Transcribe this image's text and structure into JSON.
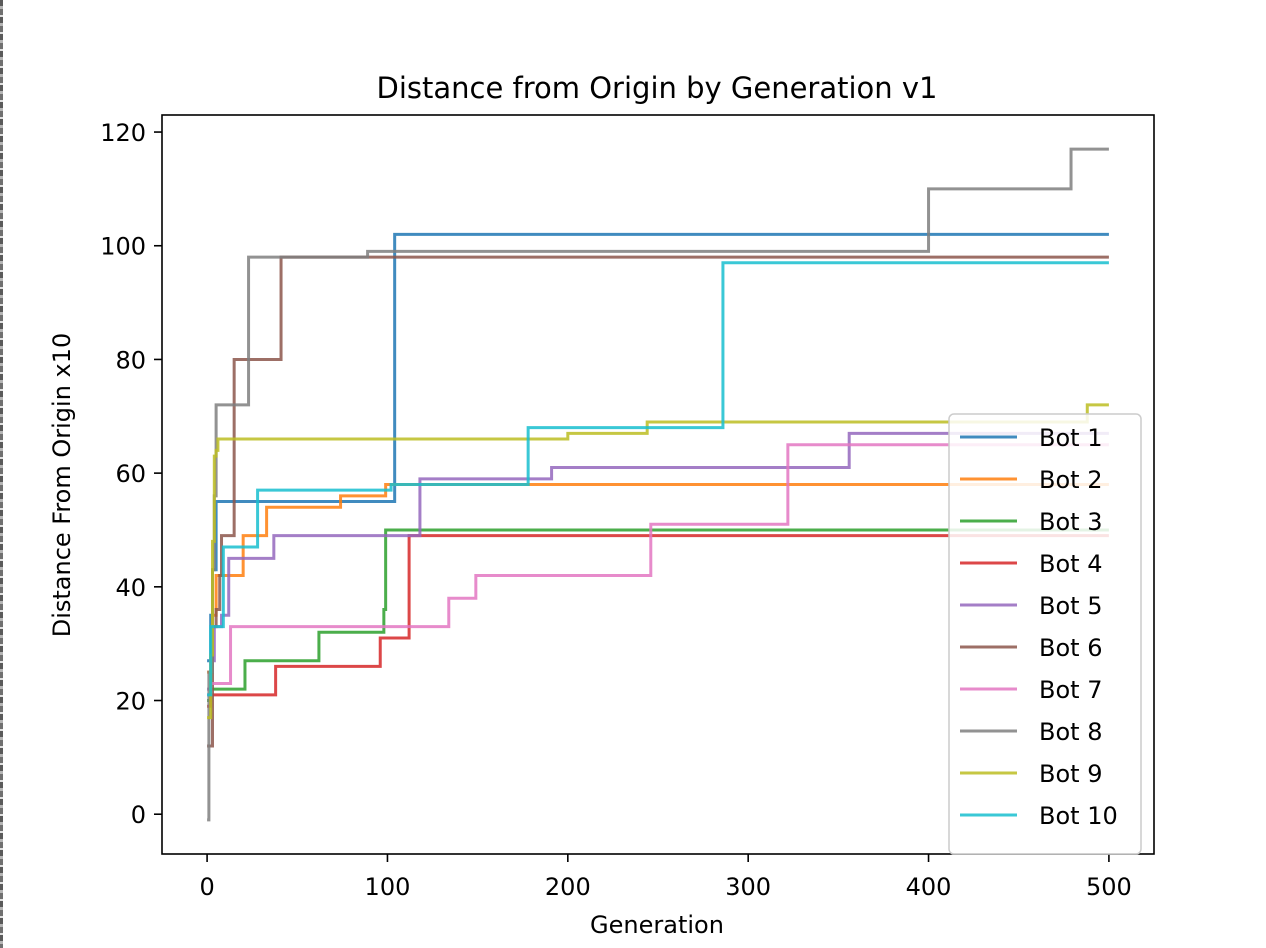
{
  "chart_data": {
    "type": "line",
    "step": true,
    "title": "Distance from Origin by Generation v1",
    "xlabel": "Generation",
    "ylabel": "Distance From Origin x10",
    "xlim": [
      -25,
      525
    ],
    "ylim": [
      -7,
      123
    ],
    "xticks": [
      0,
      100,
      200,
      300,
      400,
      500
    ],
    "yticks": [
      0,
      20,
      40,
      60,
      80,
      100,
      120
    ],
    "grid": false,
    "legend_position": "lower-right",
    "series": [
      {
        "name": "Bot 1",
        "color": "#1f77b4",
        "points": [
          [
            0,
            27
          ],
          [
            2,
            35
          ],
          [
            3,
            43
          ],
          [
            5,
            55
          ],
          [
            104,
            55
          ],
          [
            104,
            102
          ],
          [
            500,
            102
          ]
        ]
      },
      {
        "name": "Bot 2",
        "color": "#ff7f0e",
        "points": [
          [
            0,
            25
          ],
          [
            3,
            35
          ],
          [
            5,
            42
          ],
          [
            19,
            42
          ],
          [
            20,
            49
          ],
          [
            31,
            49
          ],
          [
            33,
            54
          ],
          [
            73,
            54
          ],
          [
            74,
            56
          ],
          [
            98,
            56
          ],
          [
            99,
            58
          ],
          [
            500,
            58
          ]
        ]
      },
      {
        "name": "Bot 3",
        "color": "#2ca02c",
        "points": [
          [
            0,
            20
          ],
          [
            2,
            22
          ],
          [
            20,
            22
          ],
          [
            21,
            27
          ],
          [
            61,
            27
          ],
          [
            62,
            32
          ],
          [
            96,
            32
          ],
          [
            98,
            36
          ],
          [
            99,
            50
          ],
          [
            500,
            50
          ]
        ]
      },
      {
        "name": "Bot 4",
        "color": "#d62728",
        "points": [
          [
            0,
            19
          ],
          [
            2,
            21
          ],
          [
            37,
            21
          ],
          [
            38,
            26
          ],
          [
            95,
            26
          ],
          [
            96,
            31
          ],
          [
            111,
            31
          ],
          [
            112,
            49
          ],
          [
            500,
            49
          ]
        ]
      },
      {
        "name": "Bot 5",
        "color": "#9467bd",
        "points": [
          [
            0,
            22
          ],
          [
            2,
            27
          ],
          [
            4,
            33
          ],
          [
            8,
            35
          ],
          [
            11,
            35
          ],
          [
            12,
            45
          ],
          [
            36,
            45
          ],
          [
            37,
            49
          ],
          [
            116,
            49
          ],
          [
            118,
            59
          ],
          [
            190,
            59
          ],
          [
            191,
            61
          ],
          [
            355,
            61
          ],
          [
            356,
            67
          ],
          [
            500,
            67
          ]
        ]
      },
      {
        "name": "Bot 6",
        "color": "#8c564b",
        "points": [
          [
            0,
            12
          ],
          [
            3,
            33
          ],
          [
            5,
            36
          ],
          [
            7,
            42
          ],
          [
            8,
            49
          ],
          [
            14,
            49
          ],
          [
            15,
            80
          ],
          [
            40,
            80
          ],
          [
            41,
            98
          ],
          [
            500,
            98
          ]
        ]
      },
      {
        "name": "Bot 7",
        "color": "#e377c2",
        "points": [
          [
            0,
            21
          ],
          [
            2,
            23
          ],
          [
            11,
            23
          ],
          [
            13,
            33
          ],
          [
            133,
            33
          ],
          [
            134,
            38
          ],
          [
            148,
            38
          ],
          [
            149,
            42
          ],
          [
            245,
            42
          ],
          [
            246,
            51
          ],
          [
            321,
            51
          ],
          [
            322,
            65
          ],
          [
            500,
            65
          ]
        ]
      },
      {
        "name": "Bot 8",
        "color": "#7f7f7f",
        "points": [
          [
            0,
            -1
          ],
          [
            1,
            25
          ],
          [
            3,
            43
          ],
          [
            4,
            56
          ],
          [
            5,
            72
          ],
          [
            22,
            72
          ],
          [
            23,
            98
          ],
          [
            88,
            98
          ],
          [
            89,
            99
          ],
          [
            399,
            99
          ],
          [
            400,
            110
          ],
          [
            478,
            110
          ],
          [
            479,
            117
          ],
          [
            500,
            117
          ]
        ]
      },
      {
        "name": "Bot 9",
        "color": "#bcbd22",
        "points": [
          [
            0,
            17
          ],
          [
            2,
            28
          ],
          [
            3,
            48
          ],
          [
            4,
            63
          ],
          [
            5,
            64
          ],
          [
            6,
            66
          ],
          [
            199,
            66
          ],
          [
            200,
            67
          ],
          [
            243,
            67
          ],
          [
            244,
            69
          ],
          [
            487,
            69
          ],
          [
            488,
            72
          ],
          [
            500,
            72
          ]
        ]
      },
      {
        "name": "Bot 10",
        "color": "#17becf",
        "points": [
          [
            0,
            21
          ],
          [
            2,
            33
          ],
          [
            7,
            33
          ],
          [
            9,
            47
          ],
          [
            27,
            47
          ],
          [
            28,
            57
          ],
          [
            101,
            57
          ],
          [
            102,
            58
          ],
          [
            177,
            58
          ],
          [
            178,
            68
          ],
          [
            285,
            68
          ],
          [
            286,
            97
          ],
          [
            500,
            97
          ]
        ]
      }
    ]
  }
}
